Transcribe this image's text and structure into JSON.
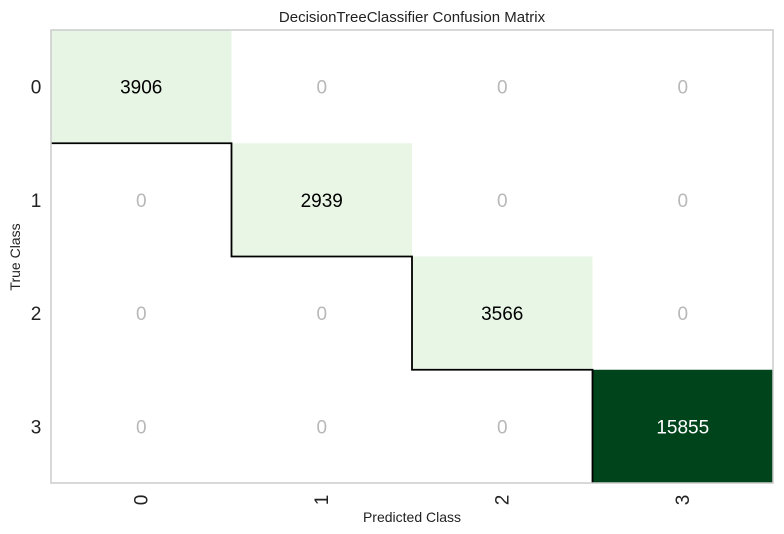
{
  "chart_data": {
    "type": "heatmap",
    "title": "DecisionTreeClassifier Confusion Matrix",
    "xlabel": "Predicted Class",
    "ylabel": "True Class",
    "x_categories": [
      "0",
      "1",
      "2",
      "3"
    ],
    "y_categories": [
      "0",
      "1",
      "2",
      "3"
    ],
    "values": [
      [
        3906,
        0,
        0,
        0
      ],
      [
        0,
        2939,
        0,
        0
      ],
      [
        0,
        0,
        3566,
        0
      ],
      [
        0,
        0,
        0,
        15855
      ]
    ],
    "colors": {
      "zero_text": "#b8b8b8",
      "dark_text": "#000000",
      "light_text": "#ffffff",
      "cmap": [
        "#f7fcf5",
        "#c7e9c0",
        "#a1d99b",
        "#74c476",
        "#41ab5d",
        "#238b45",
        "#006d2c",
        "#00441b"
      ]
    },
    "grid": false
  }
}
